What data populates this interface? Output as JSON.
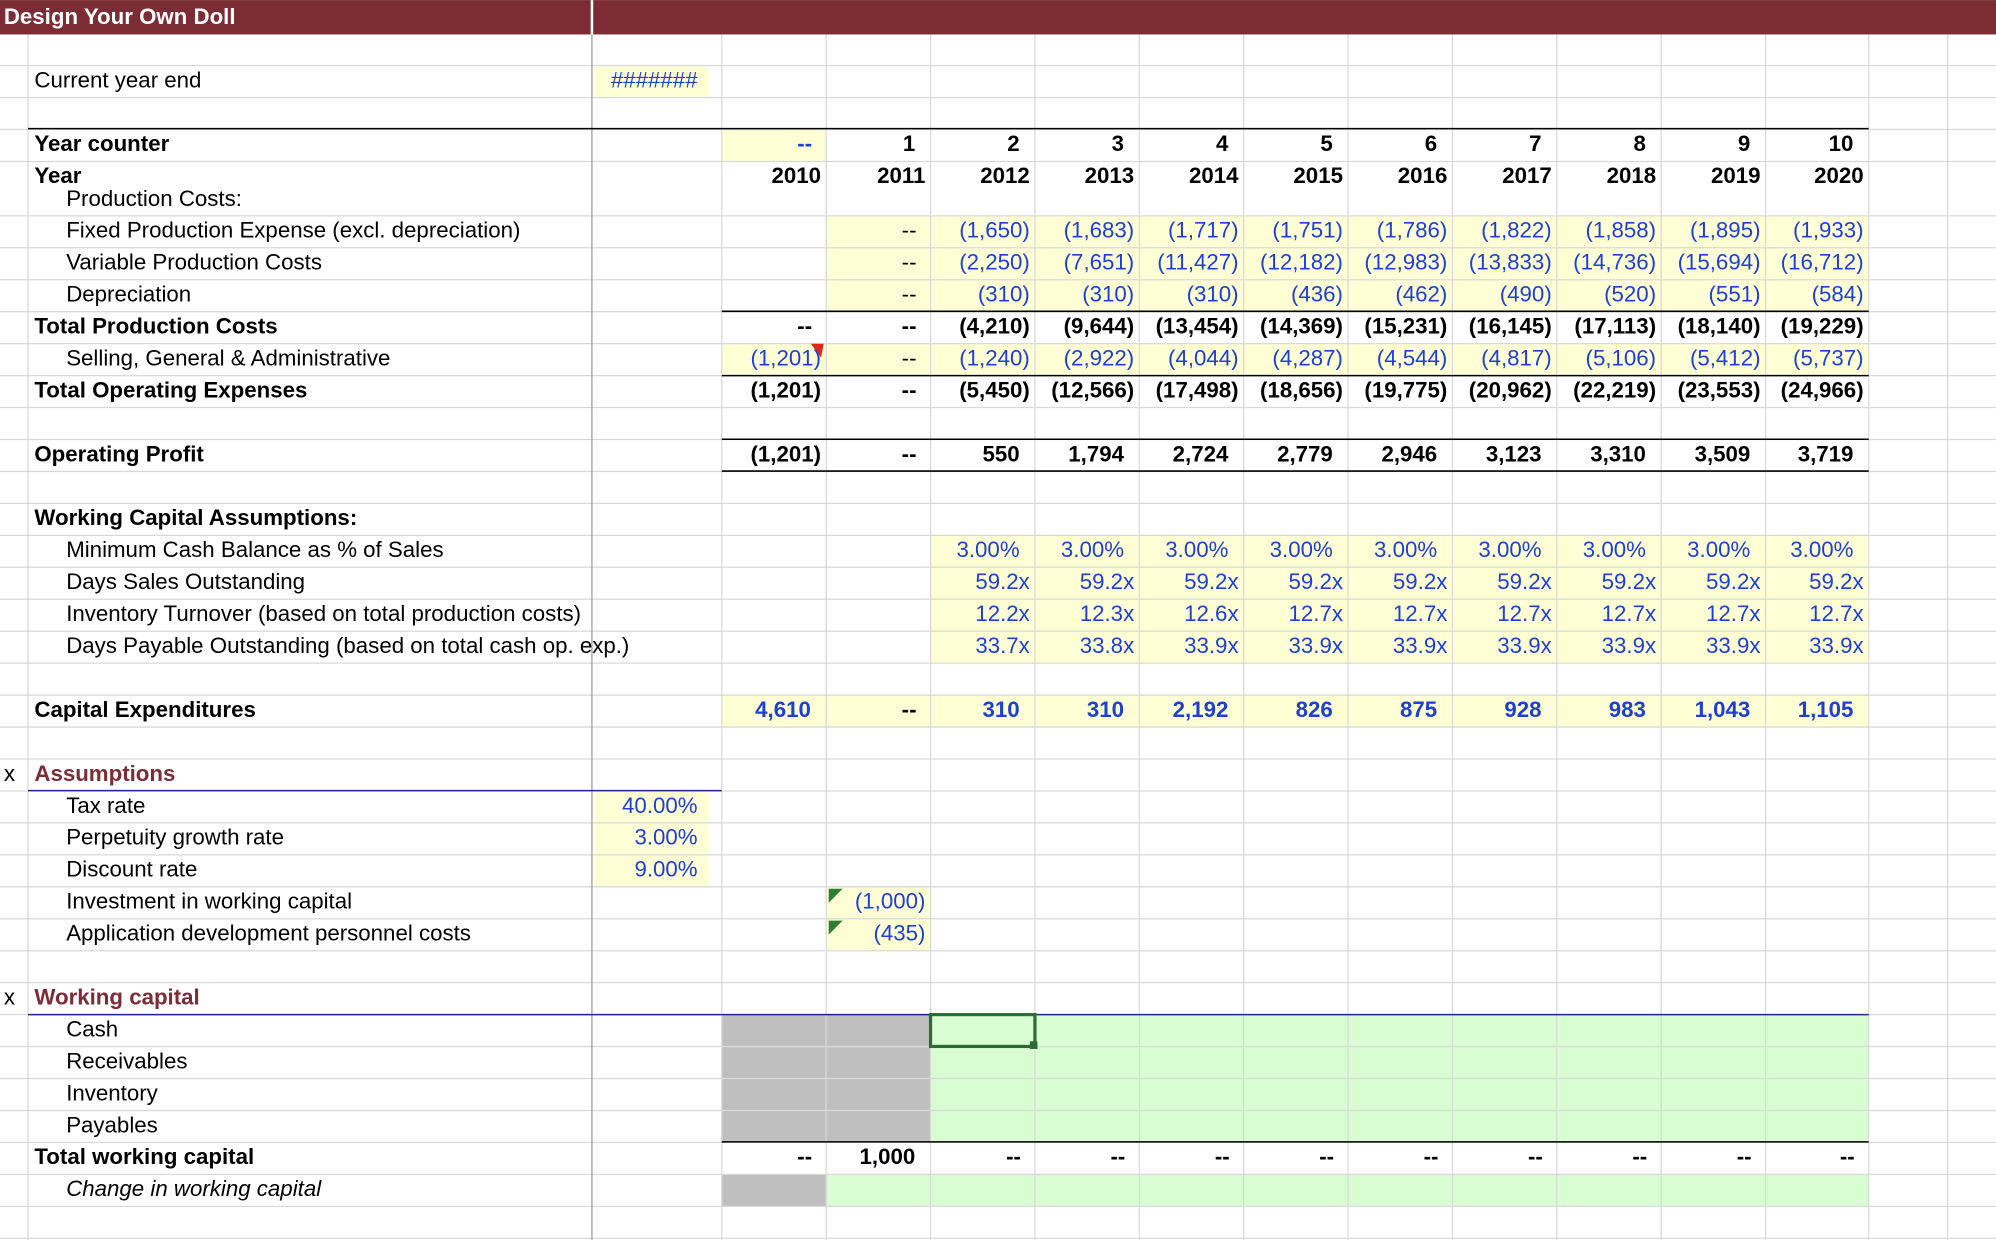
{
  "header": {
    "title": "Design Your Own Doll"
  },
  "rows": [
    {
      "label": "Current year end",
      "input": "#######"
    },
    {
      "label": "Year counter",
      "cells": [
        "--",
        "1",
        "2",
        "3",
        "4",
        "5",
        "6",
        "7",
        "8",
        "9",
        "10"
      ]
    },
    {
      "label": "Year",
      "cells": [
        "2010",
        "2011",
        "2012",
        "2013",
        "2014",
        "2015",
        "2016",
        "2017",
        "2018",
        "2019",
        "2020"
      ]
    },
    {
      "label": "Production Costs:"
    },
    {
      "label": "Fixed Production Expense (excl. depreciation)",
      "cells": [
        null,
        "--",
        "(1,650)",
        "(1,683)",
        "(1,717)",
        "(1,751)",
        "(1,786)",
        "(1,822)",
        "(1,858)",
        "(1,895)",
        "(1,933)"
      ]
    },
    {
      "label": "Variable Production Costs",
      "cells": [
        null,
        "--",
        "(2,250)",
        "(7,651)",
        "(11,427)",
        "(12,182)",
        "(12,983)",
        "(13,833)",
        "(14,736)",
        "(15,694)",
        "(16,712)"
      ]
    },
    {
      "label": "Depreciation",
      "cells": [
        null,
        "--",
        "(310)",
        "(310)",
        "(310)",
        "(436)",
        "(462)",
        "(490)",
        "(520)",
        "(551)",
        "(584)"
      ]
    },
    {
      "label": "Total Production Costs",
      "cells": [
        "--",
        "--",
        "(4,210)",
        "(9,644)",
        "(13,454)",
        "(14,369)",
        "(15,231)",
        "(16,145)",
        "(17,113)",
        "(18,140)",
        "(19,229)"
      ]
    },
    {
      "label": "Selling, General & Administrative",
      "cells": [
        "(1,201)",
        "--",
        "(1,240)",
        "(2,922)",
        "(4,044)",
        "(4,287)",
        "(4,544)",
        "(4,817)",
        "(5,106)",
        "(5,412)",
        "(5,737)"
      ]
    },
    {
      "label": "Total Operating Expenses",
      "cells": [
        "(1,201)",
        "--",
        "(5,450)",
        "(12,566)",
        "(17,498)",
        "(18,656)",
        "(19,775)",
        "(20,962)",
        "(22,219)",
        "(23,553)",
        "(24,966)"
      ]
    },
    {
      "label": "Operating Profit",
      "cells": [
        "(1,201)",
        "--",
        "550",
        "1,794",
        "2,724",
        "2,779",
        "2,946",
        "3,123",
        "3,310",
        "3,509",
        "3,719"
      ]
    },
    {
      "label": "Working Capital Assumptions:"
    },
    {
      "label": "Minimum Cash Balance as % of Sales",
      "cells": [
        null,
        null,
        "3.00%",
        "3.00%",
        "3.00%",
        "3.00%",
        "3.00%",
        "3.00%",
        "3.00%",
        "3.00%",
        "3.00%"
      ]
    },
    {
      "label": "Days Sales Outstanding",
      "cells": [
        null,
        null,
        "59.2x",
        "59.2x",
        "59.2x",
        "59.2x",
        "59.2x",
        "59.2x",
        "59.2x",
        "59.2x",
        "59.2x"
      ]
    },
    {
      "label": "Inventory Turnover (based on total production costs)",
      "cells": [
        null,
        null,
        "12.2x",
        "12.3x",
        "12.6x",
        "12.7x",
        "12.7x",
        "12.7x",
        "12.7x",
        "12.7x",
        "12.7x"
      ]
    },
    {
      "label": "Days Payable Outstanding (based on total cash op. exp.)",
      "cells": [
        null,
        null,
        "33.7x",
        "33.8x",
        "33.9x",
        "33.9x",
        "33.9x",
        "33.9x",
        "33.9x",
        "33.9x",
        "33.9x"
      ]
    },
    {
      "label": "Capital Expenditures",
      "cells": [
        "4,610",
        "--",
        "310",
        "310",
        "2,192",
        "826",
        "875",
        "928",
        "983",
        "1,043",
        "1,105"
      ]
    },
    {
      "marker": "x",
      "label": "Assumptions"
    },
    {
      "label": "Tax rate",
      "input": "40.00%"
    },
    {
      "label": "Perpetuity growth rate",
      "input": "3.00%"
    },
    {
      "label": "Discount rate",
      "input": "9.00%"
    },
    {
      "label": "Investment in working capital",
      "cells": [
        null,
        "(1,000)"
      ]
    },
    {
      "label": "Application development personnel costs",
      "cells": [
        null,
        "(435)"
      ]
    },
    {
      "marker": "x",
      "label": "Working capital"
    },
    {
      "label": "Cash"
    },
    {
      "label": "Receivables"
    },
    {
      "label": "Inventory"
    },
    {
      "label": "Payables"
    },
    {
      "label": "Total working capital",
      "cells": [
        "--",
        "1,000",
        "--",
        "--",
        "--",
        "--",
        "--",
        "--",
        "--",
        "--",
        "--"
      ]
    },
    {
      "label": "Change in working capital"
    }
  ]
}
